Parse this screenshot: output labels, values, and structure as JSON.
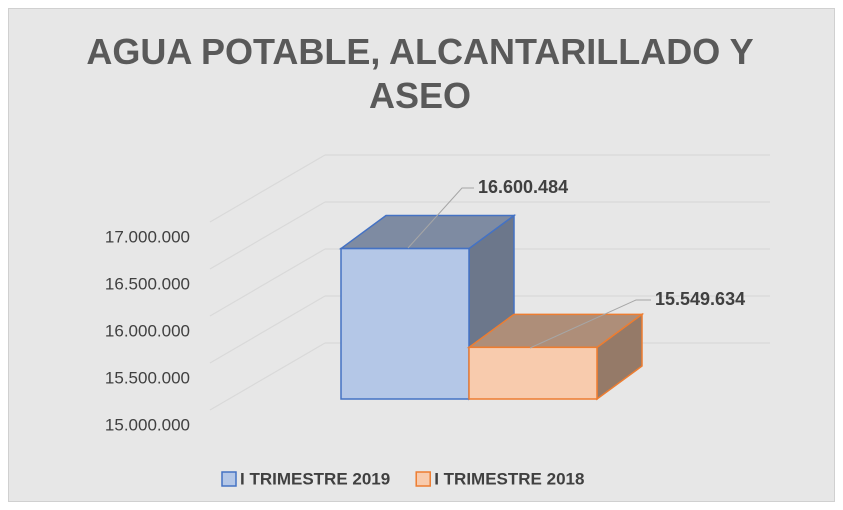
{
  "chart_data": {
    "type": "bar3d",
    "title": "AGUA POTABLE, ALCANTARILLADO Y ASEO",
    "series": [
      {
        "name": "I TRIMESTRE 2019",
        "color": "#b4c7e7",
        "edge": "#4472c4",
        "values": [
          16600484
        ],
        "value_labels": [
          "16.600.484"
        ]
      },
      {
        "name": "I TRIMESTRE 2018",
        "color": "#f8cbad",
        "edge": "#ed7d31",
        "values": [
          15549634
        ],
        "value_labels": [
          "15.549.634"
        ]
      }
    ],
    "ylim": [
      15000000,
      17000000
    ],
    "yticks": [
      {
        "value": 15000000,
        "label": "15.000.000"
      },
      {
        "value": 15500000,
        "label": "15.500.000"
      },
      {
        "value": 16000000,
        "label": "16.000.000"
      },
      {
        "value": 16500000,
        "label": "16.500.000"
      },
      {
        "value": 17000000,
        "label": "17.000.000"
      }
    ],
    "grid": true,
    "legend": "bottom"
  }
}
